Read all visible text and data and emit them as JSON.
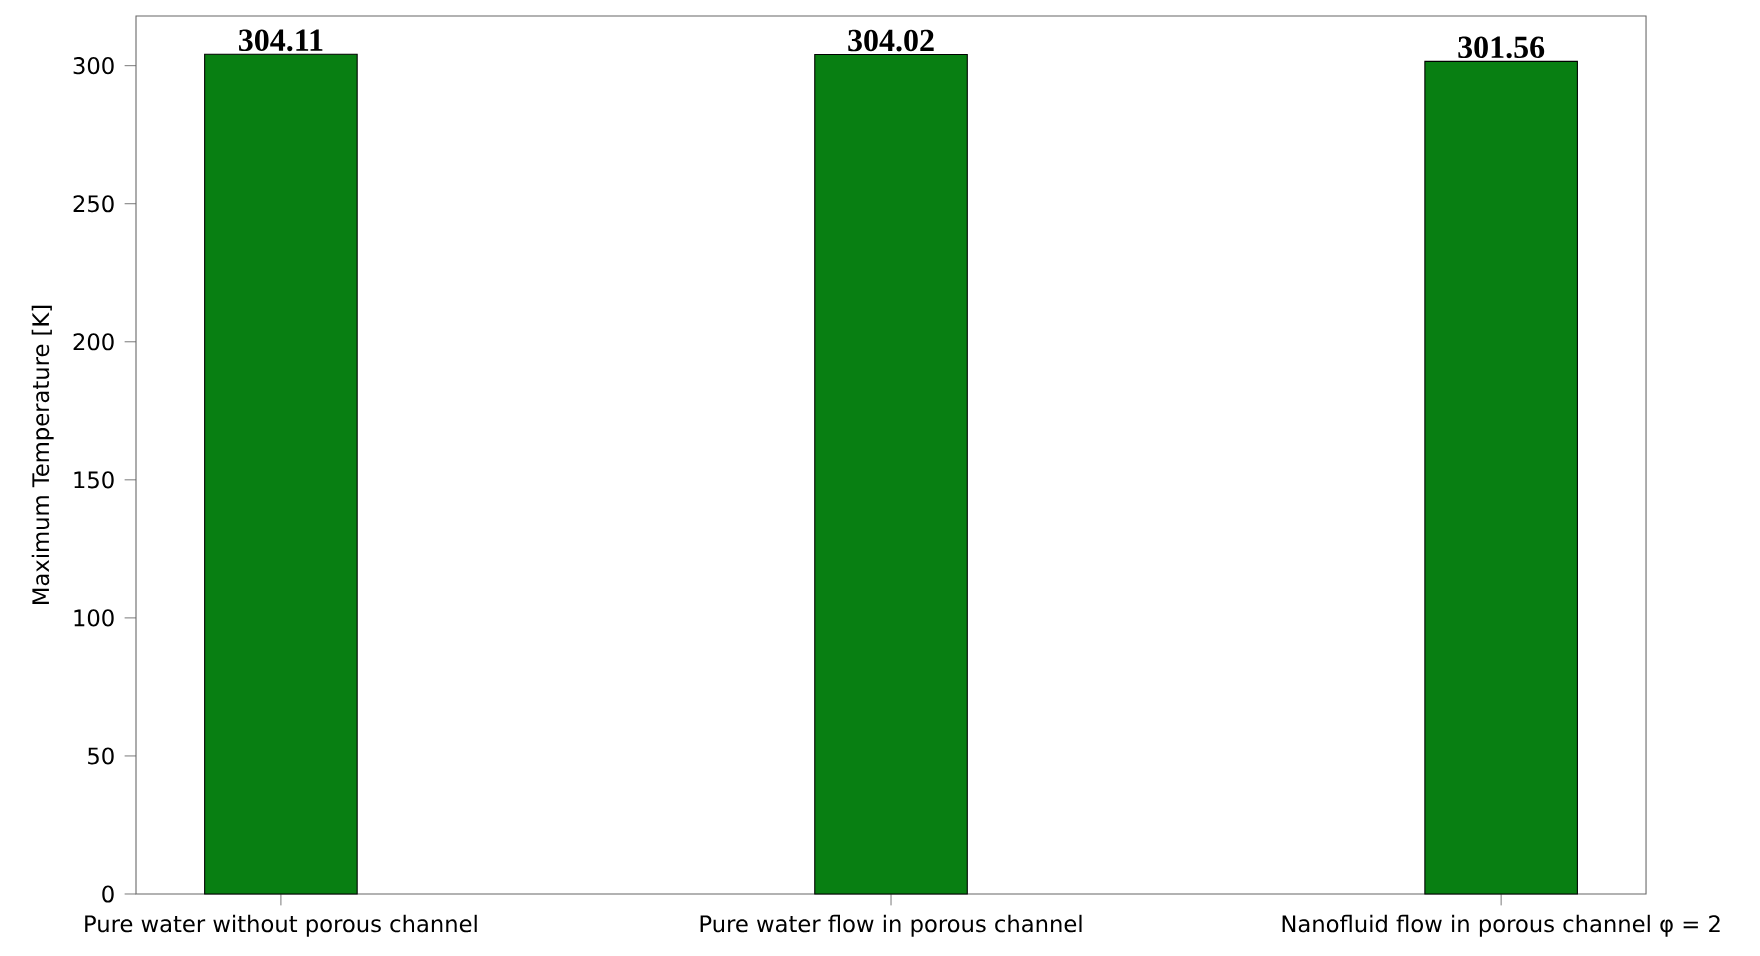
{
  "chart_data": {
    "type": "bar",
    "ylabel": "Maximum Temperature [K]",
    "categories": [
      "Pure water without porous channel",
      "Pure water flow in porous channel",
      "Nanofluid flow in porous channel φ = 2"
    ],
    "values": [
      304.11,
      304.02,
      301.56
    ],
    "color": "#087f12",
    "ylim": [
      0,
      318
    ],
    "yticks": [
      0,
      50,
      100,
      150,
      200,
      250,
      300
    ],
    "data_labels": true,
    "grid": false,
    "legend": false
  }
}
